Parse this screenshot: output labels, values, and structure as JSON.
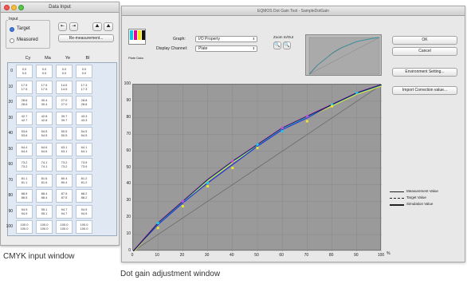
{
  "main_window": {
    "title": "EQMOS Dot Gain Tool - SampleDotGain",
    "graph_label": "Graph:",
    "graph_value": "I/O Property",
    "display_channel_label": "Display Channel:",
    "display_channel_value": "Plate",
    "zoom_label": "Zoom In/Out",
    "swatch_label": "Plate Data",
    "buttons": {
      "ok": "OK",
      "cancel": "Cancel",
      "environment": "Environment Setting...",
      "import": "Import Correction value..."
    },
    "legend": {
      "measurement": "Measurement Value",
      "target": "Target Value",
      "simulation": "Simulation Value"
    },
    "x_unit": "%",
    "colors": {
      "plot_bg": "#9a9a9a",
      "cyan": "#1ec8e8",
      "magenta": "#c050d8",
      "yellow": "#e8e632",
      "black": "#222222",
      "blue": "#2a3ad0"
    }
  },
  "chart_data": {
    "type": "line",
    "xlim": [
      0,
      100
    ],
    "ylim": [
      0,
      100
    ],
    "x_ticks": [
      "0",
      "10",
      "20",
      "30",
      "40",
      "50",
      "60",
      "70",
      "80",
      "90",
      "100"
    ],
    "y_ticks": [
      "0",
      "10",
      "20",
      "30",
      "40",
      "50",
      "60",
      "70",
      "80",
      "90",
      "100"
    ],
    "grid": true,
    "legend_position": "bottom-right",
    "x": [
      0,
      10,
      20,
      30,
      40,
      50,
      60,
      70,
      80,
      90,
      100
    ],
    "series": [
      {
        "name": "Measurement Value",
        "values": [
          0,
          17,
          30,
          43,
          54,
          64,
          74,
          81,
          88,
          95,
          100
        ]
      },
      {
        "name": "Target Value",
        "values": [
          0,
          10,
          20,
          30,
          40,
          50,
          60,
          70,
          80,
          90,
          100
        ]
      },
      {
        "name": "Simulation Value",
        "values": [
          0,
          16,
          29,
          41,
          52,
          63,
          73,
          80,
          88,
          95,
          100
        ]
      }
    ],
    "markers": [
      {
        "x": 10,
        "y": 17,
        "c": "#1ec8e8"
      },
      {
        "x": 10,
        "y": 14,
        "c": "#e8e632"
      },
      {
        "x": 20,
        "y": 30,
        "c": "#c050d8"
      },
      {
        "x": 20,
        "y": 27,
        "c": "#e8e632"
      },
      {
        "x": 30,
        "y": 41,
        "c": "#1ec8e8"
      },
      {
        "x": 30,
        "y": 39,
        "c": "#e8e632"
      },
      {
        "x": 40,
        "y": 54,
        "c": "#c050d8"
      },
      {
        "x": 40,
        "y": 50,
        "c": "#e8e632"
      },
      {
        "x": 50,
        "y": 64,
        "c": "#1ec8e8"
      },
      {
        "x": 50,
        "y": 62,
        "c": "#e8e632"
      },
      {
        "x": 60,
        "y": 74,
        "c": "#c050d8"
      },
      {
        "x": 60,
        "y": 72,
        "c": "#1ec8e8"
      },
      {
        "x": 70,
        "y": 81,
        "c": "#c050d8"
      },
      {
        "x": 70,
        "y": 78,
        "c": "#e8e632"
      },
      {
        "x": 80,
        "y": 88,
        "c": "#1ec8e8"
      },
      {
        "x": 80,
        "y": 87,
        "c": "#e8e632"
      },
      {
        "x": 90,
        "y": 95,
        "c": "#1ec8e8"
      }
    ]
  },
  "input_window": {
    "title": "Data Input",
    "input_group_label": "Input",
    "radio_target": "Target",
    "radio_measured": "Measured",
    "remeasure_button": "Re-measurement...",
    "columns": [
      "Cy",
      "Ma",
      "Ye",
      "Bl"
    ],
    "rows": [
      {
        "label": "0",
        "cells": [
          [
            "0.0",
            "0.0"
          ],
          [
            "0.0",
            "0.0"
          ],
          [
            "0.0",
            "0.0"
          ],
          [
            "0.0",
            "0.0"
          ]
        ]
      },
      {
        "label": "10",
        "cells": [
          [
            "17.5",
            "17.5"
          ],
          [
            "17.5",
            "17.5"
          ],
          [
            "14.5",
            "14.5"
          ],
          [
            "17.3",
            "17.3"
          ]
        ]
      },
      {
        "label": "20",
        "cells": [
          [
            "28.6",
            "28.6"
          ],
          [
            "30.4",
            "30.4"
          ],
          [
            "27.0",
            "27.0"
          ],
          [
            "28.8",
            "28.8"
          ]
        ]
      },
      {
        "label": "30",
        "cells": [
          [
            "42.7",
            "42.7"
          ],
          [
            "42.8",
            "42.8"
          ],
          [
            "39.7",
            "39.7"
          ],
          [
            "43.3",
            "43.3"
          ]
        ]
      },
      {
        "label": "40",
        "cells": [
          [
            "53.6",
            "53.6"
          ],
          [
            "54.5",
            "54.5"
          ],
          [
            "50.5",
            "50.5"
          ],
          [
            "54.5",
            "54.5"
          ]
        ]
      },
      {
        "label": "50",
        "cells": [
          [
            "64.4",
            "64.4"
          ],
          [
            "64.6",
            "64.6"
          ],
          [
            "63.1",
            "63.1"
          ],
          [
            "64.1",
            "64.1"
          ]
        ]
      },
      {
        "label": "60",
        "cells": [
          [
            "73.2",
            "73.2"
          ],
          [
            "74.1",
            "74.1"
          ],
          [
            "73.2",
            "73.2"
          ],
          [
            "73.9",
            "73.9"
          ]
        ]
      },
      {
        "label": "70",
        "cells": [
          [
            "81.1",
            "81.1"
          ],
          [
            "81.6",
            "81.6"
          ],
          [
            "80.4",
            "80.4"
          ],
          [
            "81.2",
            "81.2"
          ]
        ]
      },
      {
        "label": "80",
        "cells": [
          [
            "88.5",
            "88.5"
          ],
          [
            "88.4",
            "88.4"
          ],
          [
            "87.5",
            "87.5"
          ],
          [
            "88.2",
            "88.2"
          ]
        ]
      },
      {
        "label": "90",
        "cells": [
          [
            "94.9",
            "94.9"
          ],
          [
            "95.1",
            "95.1"
          ],
          [
            "94.7",
            "94.7"
          ],
          [
            "94.9",
            "94.9"
          ]
        ]
      },
      {
        "label": "100",
        "cells": [
          [
            "100.0",
            "100.0"
          ],
          [
            "100.0",
            "100.0"
          ],
          [
            "100.0",
            "100.0"
          ],
          [
            "100.0",
            "100.0"
          ]
        ]
      }
    ]
  },
  "captions": {
    "cmyk": "CMYK input window",
    "dotgain": "Dot gain adjustment window"
  }
}
